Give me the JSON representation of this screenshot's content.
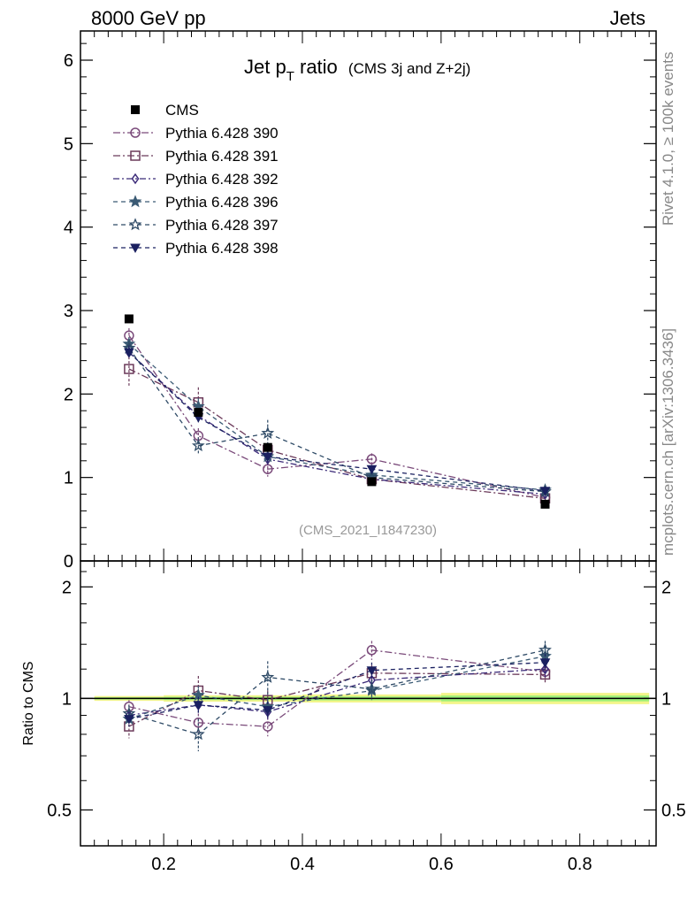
{
  "header": {
    "left": "8000 GeV pp",
    "right": "Jets"
  },
  "side_labels": {
    "rivet": "Rivet 4.1.0, ≥ 100k events",
    "mcplots": "mcplots.cern.ch [arXiv:1306.3436]"
  },
  "chart_data": [
    {
      "type": "line",
      "panel": "main",
      "title_main": "Jet p",
      "title_sub": "T",
      "title_rest": " ratio",
      "title_small": "(CMS 3j and Z+2j)",
      "annotation": "(CMS_2021_I1847230)",
      "xlim": [
        0.08,
        0.91
      ],
      "ylim": [
        0,
        6.35
      ],
      "yticks": [
        0,
        1,
        2,
        3,
        4,
        5,
        6
      ],
      "x": [
        0.15,
        0.25,
        0.35,
        0.5,
        0.75
      ],
      "data": {
        "name": "CMS",
        "values": [
          2.9,
          1.78,
          1.36,
          0.95,
          0.68
        ]
      },
      "series": [
        {
          "name": "Pythia 6.428 390",
          "marker": "circle",
          "color": "#7a4a7a",
          "dash": "8,3,2,3",
          "values": [
            2.7,
            1.5,
            1.1,
            1.22,
            0.76
          ],
          "err": [
            0.09,
            0.09,
            0.09,
            0.07,
            0.07
          ]
        },
        {
          "name": "Pythia 6.428 391",
          "marker": "square",
          "color": "#6b3a5a",
          "dash": "8,3,2,3",
          "values": [
            2.3,
            1.9,
            1.33,
            0.98,
            0.75
          ],
          "err": [
            0.2,
            0.18,
            0.08,
            0.05,
            0.05
          ]
        },
        {
          "name": "Pythia 6.428 392",
          "marker": "diamond",
          "color": "#3b2a78",
          "dash": "7,3,2,3",
          "values": [
            2.5,
            1.74,
            1.22,
            0.98,
            0.8
          ],
          "err": [
            0.08,
            0.08,
            0.07,
            0.05,
            0.05
          ]
        },
        {
          "name": "Pythia 6.428 396",
          "marker": "star",
          "color": "#3a5a74",
          "dash": "5,4",
          "values": [
            2.6,
            1.85,
            1.25,
            1.03,
            0.85
          ],
          "err": [
            0.08,
            0.1,
            0.07,
            0.05,
            0.06
          ]
        },
        {
          "name": "Pythia 6.428 397",
          "marker": "star-open",
          "color": "#2e4a66",
          "dash": "5,4",
          "values": [
            2.55,
            1.38,
            1.53,
            1.0,
            0.83
          ],
          "err": [
            0.09,
            0.1,
            0.16,
            0.05,
            0.06
          ]
        },
        {
          "name": "Pythia 6.428 398",
          "marker": "triangle-down",
          "color": "#1a2060",
          "dash": "5,4",
          "values": [
            2.5,
            1.72,
            1.25,
            1.1,
            0.84
          ],
          "err": [
            0.08,
            0.08,
            0.07,
            0.05,
            0.05
          ]
        }
      ]
    },
    {
      "type": "line",
      "panel": "ratio",
      "ylabel": "Ratio to CMS",
      "log_y": true,
      "ylim": [
        0.4,
        2.35
      ],
      "yticks": [
        0.5,
        1,
        2
      ],
      "ytick_labels": [
        "0.5",
        "1",
        "2"
      ],
      "xticks": [
        0.2,
        0.4,
        0.6,
        0.8
      ],
      "xtick_labels": [
        "0.2",
        "0.4",
        "0.6",
        "0.8"
      ],
      "x": [
        0.15,
        0.25,
        0.35,
        0.5,
        0.75
      ],
      "band": {
        "x_ranges": [
          [
            0.1,
            0.2
          ],
          [
            0.2,
            0.3
          ],
          [
            0.3,
            0.4
          ],
          [
            0.4,
            0.6
          ],
          [
            0.6,
            0.9
          ]
        ],
        "yellow_halfwidth": [
          0.015,
          0.02,
          0.02,
          0.025,
          0.035
        ],
        "green_halfwidth": [
          0.007,
          0.01,
          0.01,
          0.012,
          0.018
        ]
      },
      "series": [
        {
          "name": "Pythia 6.428 390",
          "values": [
            0.95,
            0.86,
            0.84,
            1.35,
            1.18
          ],
          "err": [
            0.04,
            0.05,
            0.05,
            0.08,
            0.07
          ]
        },
        {
          "name": "Pythia 6.428 391",
          "values": [
            0.84,
            1.05,
            0.99,
            1.17,
            1.16
          ],
          "err": [
            0.06,
            0.1,
            0.06,
            0.06,
            0.06
          ]
        },
        {
          "name": "Pythia 6.428 392",
          "values": [
            0.9,
            0.96,
            0.92,
            1.12,
            1.2
          ],
          "err": [
            0.04,
            0.05,
            0.05,
            0.06,
            0.06
          ]
        },
        {
          "name": "Pythia 6.428 396",
          "values": [
            0.88,
            1.02,
            0.95,
            1.05,
            1.3
          ],
          "err": [
            0.04,
            0.06,
            0.05,
            0.06,
            0.07
          ]
        },
        {
          "name": "Pythia 6.428 397",
          "values": [
            0.91,
            0.8,
            1.14,
            1.06,
            1.35
          ],
          "err": [
            0.05,
            0.08,
            0.12,
            0.06,
            0.08
          ]
        },
        {
          "name": "Pythia 6.428 398",
          "values": [
            0.88,
            0.96,
            0.93,
            1.19,
            1.25
          ],
          "err": [
            0.04,
            0.05,
            0.05,
            0.06,
            0.07
          ]
        }
      ]
    }
  ]
}
